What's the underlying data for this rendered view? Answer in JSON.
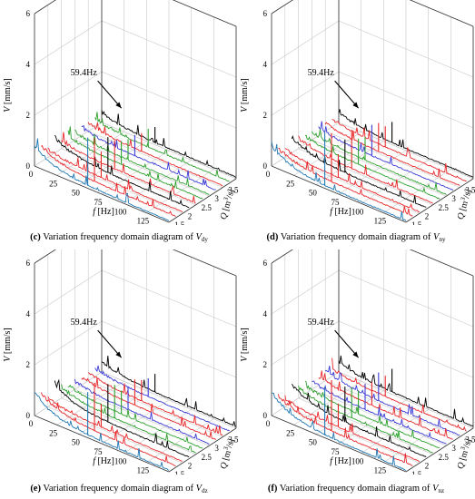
{
  "chart_data": [
    {
      "type": "3d-waterfall",
      "panel_label": "(c)",
      "caption_text": "Variation frequency domain diagram of ",
      "caption_var": "V",
      "caption_sub": "dy",
      "xlabel_main": "f",
      "xlabel_unit": " [Hz]",
      "ylabel_main": "Q",
      "ylabel_unit": " [m",
      "ylabel_sup": "3",
      "ylabel_end": "/s]",
      "zlabel_main": "V",
      "zlabel_unit": " [mm/s]",
      "x_ticks": [
        "0",
        "25",
        "50",
        "75",
        "100",
        "125",
        "150"
      ],
      "y_ticks": [
        "1.5",
        "2",
        "2.5",
        "3",
        "3.5",
        "4"
      ],
      "z_ticks": [
        "0",
        "2",
        "4",
        "6"
      ],
      "xlim": [
        0,
        150
      ],
      "ylim": [
        1.5,
        4
      ],
      "zlim": [
        0,
        6
      ],
      "annotation": "59.4Hz",
      "annotation_freq": 59.4,
      "series": [
        {
          "q": 1.5,
          "color": "#1f77b4",
          "peak": 2.0,
          "base": 0.7
        },
        {
          "q": 1.75,
          "color": "#e8272a",
          "peak": 1.8,
          "base": 0.5
        },
        {
          "q": 2.0,
          "color": "#e8272a",
          "peak": 1.1,
          "base": 0.2
        },
        {
          "q": 2.25,
          "color": "#000000",
          "peak": 1.5,
          "base": 0.5
        },
        {
          "q": 2.5,
          "color": "#e8272a",
          "peak": 1.2,
          "base": 0.2
        },
        {
          "q": 2.75,
          "color": "#2ca02c",
          "peak": 1.0,
          "base": 0.2
        },
        {
          "q": 3.0,
          "color": "#2ca02c",
          "peak": 0.9,
          "base": 0.2
        },
        {
          "q": 3.25,
          "color": "#3b3bd6",
          "peak": 0.9,
          "base": 0.2
        },
        {
          "q": 3.5,
          "color": "#e8272a",
          "peak": 0.8,
          "base": 0.2
        },
        {
          "q": 3.75,
          "color": "#2ca02c",
          "peak": 0.8,
          "base": 0.2
        },
        {
          "q": 4.0,
          "color": "#000000",
          "peak": 0.7,
          "base": 0.3
        }
      ]
    },
    {
      "type": "3d-waterfall",
      "panel_label": "(d)",
      "caption_text": "Variation frequency domain diagram of ",
      "caption_var": "V",
      "caption_sub": "ny",
      "xlabel_main": "f",
      "xlabel_unit": " [Hz]",
      "ylabel_main": "Q",
      "ylabel_unit": " [m",
      "ylabel_sup": "3",
      "ylabel_end": "/s]",
      "zlabel_main": "V",
      "zlabel_unit": " [mm/s]",
      "x_ticks": [
        "0",
        "25",
        "50",
        "75",
        "100",
        "125",
        "150"
      ],
      "y_ticks": [
        "1.5",
        "2",
        "2.5",
        "3",
        "3.5",
        "4"
      ],
      "z_ticks": [
        "0",
        "2",
        "4",
        "6"
      ],
      "xlim": [
        0,
        150
      ],
      "ylim": [
        1.5,
        4
      ],
      "zlim": [
        0,
        6
      ],
      "annotation": "59.4Hz",
      "annotation_freq": 59.4,
      "series": [
        {
          "q": 1.5,
          "color": "#1f77b4",
          "peak": 2.2,
          "base": 0.7
        },
        {
          "q": 1.75,
          "color": "#e8272a",
          "peak": 2.0,
          "base": 0.4
        },
        {
          "q": 2.0,
          "color": "#e8272a",
          "peak": 1.0,
          "base": 0.2
        },
        {
          "q": 2.25,
          "color": "#000000",
          "peak": 1.4,
          "base": 0.5
        },
        {
          "q": 2.5,
          "color": "#e8272a",
          "peak": 1.6,
          "base": 0.3
        },
        {
          "q": 2.75,
          "color": "#2ca02c",
          "peak": 1.1,
          "base": 0.2
        },
        {
          "q": 3.0,
          "color": "#2ca02c",
          "peak": 1.0,
          "base": 0.2
        },
        {
          "q": 3.25,
          "color": "#3b3bd6",
          "peak": 1.3,
          "base": 0.2
        },
        {
          "q": 3.5,
          "color": "#e8272a",
          "peak": 1.2,
          "base": 0.2
        },
        {
          "q": 3.75,
          "color": "#e8272a",
          "peak": 0.9,
          "base": 0.2
        },
        {
          "q": 4.0,
          "color": "#000000",
          "peak": 0.9,
          "base": 0.3
        }
      ]
    },
    {
      "type": "3d-waterfall",
      "panel_label": "(e)",
      "caption_text": "Variation frequency domain diagram of ",
      "caption_var": "V",
      "caption_sub": "dz",
      "xlabel_main": "f",
      "xlabel_unit": " [Hz]",
      "ylabel_main": "Q",
      "ylabel_unit": " [m",
      "ylabel_sup": "3",
      "ylabel_end": "/s]",
      "zlabel_main": "V",
      "zlabel_unit": " [mm/s]",
      "x_ticks": [
        "0",
        "25",
        "50",
        "75",
        "100",
        "125",
        "150"
      ],
      "y_ticks": [
        "1.5",
        "2",
        "2.5",
        "3",
        "3.5",
        "4"
      ],
      "z_ticks": [
        "0",
        "2",
        "4",
        "6"
      ],
      "xlim": [
        0,
        150
      ],
      "ylim": [
        1.5,
        4
      ],
      "zlim": [
        0,
        6
      ],
      "annotation": "59.4Hz",
      "annotation_freq": 59.4,
      "series": [
        {
          "q": 1.5,
          "color": "#1f77b4",
          "peak": 1.8,
          "base": 0.8
        },
        {
          "q": 1.75,
          "color": "#e8272a",
          "peak": 2.0,
          "base": 0.6
        },
        {
          "q": 2.0,
          "color": "#e8272a",
          "peak": 1.0,
          "base": 0.2
        },
        {
          "q": 2.25,
          "color": "#000000",
          "peak": 1.6,
          "base": 0.6
        },
        {
          "q": 2.5,
          "color": "#2ca02c",
          "peak": 1.4,
          "base": 0.3
        },
        {
          "q": 2.75,
          "color": "#2ca02c",
          "peak": 1.0,
          "base": 0.2
        },
        {
          "q": 3.0,
          "color": "#3b3bd6",
          "peak": 1.0,
          "base": 0.2
        },
        {
          "q": 3.25,
          "color": "#e8272a",
          "peak": 1.1,
          "base": 0.2
        },
        {
          "q": 3.5,
          "color": "#e8272a",
          "peak": 0.9,
          "base": 0.2
        },
        {
          "q": 3.75,
          "color": "#3b3bd6",
          "peak": 0.8,
          "base": 0.2
        },
        {
          "q": 4.0,
          "color": "#000000",
          "peak": 0.8,
          "base": 0.3
        }
      ]
    },
    {
      "type": "3d-waterfall",
      "panel_label": "(f)",
      "caption_text": "Variation frequency domain diagram of ",
      "caption_var": "V",
      "caption_sub": "nz",
      "xlabel_main": "f",
      "xlabel_unit": " [Hz]",
      "ylabel_main": "Q",
      "ylabel_unit": " [m",
      "ylabel_sup": "3",
      "ylabel_end": "/s]",
      "zlabel_main": "V",
      "zlabel_unit": " [mm/s]",
      "x_ticks": [
        "0",
        "25",
        "50",
        "75",
        "100",
        "125",
        "150"
      ],
      "y_ticks": [
        "1.5",
        "2",
        "2.5",
        "3",
        "3.5",
        "4"
      ],
      "z_ticks": [
        "0",
        "2",
        "4",
        "6"
      ],
      "xlim": [
        0,
        150
      ],
      "ylim": [
        1.5,
        4
      ],
      "zlim": [
        0,
        6
      ],
      "annotation": "59.4Hz",
      "annotation_freq": 59.4,
      "series": [
        {
          "q": 1.5,
          "color": "#1f77b4",
          "peak": 2.0,
          "base": 0.8
        },
        {
          "q": 1.75,
          "color": "#e8272a",
          "peak": 2.1,
          "base": 0.5
        },
        {
          "q": 2.0,
          "color": "#e8272a",
          "peak": 1.0,
          "base": 0.2
        },
        {
          "q": 2.25,
          "color": "#000000",
          "peak": 1.5,
          "base": 0.6
        },
        {
          "q": 2.5,
          "color": "#2ca02c",
          "peak": 1.3,
          "base": 0.3
        },
        {
          "q": 2.75,
          "color": "#2ca02c",
          "peak": 1.0,
          "base": 0.2
        },
        {
          "q": 3.0,
          "color": "#3b3bd6",
          "peak": 1.1,
          "base": 0.2
        },
        {
          "q": 3.25,
          "color": "#e8272a",
          "peak": 1.0,
          "base": 0.2
        },
        {
          "q": 3.5,
          "color": "#3b3bd6",
          "peak": 1.2,
          "base": 0.3
        },
        {
          "q": 3.75,
          "color": "#e8272a",
          "peak": 0.9,
          "base": 0.2
        },
        {
          "q": 4.0,
          "color": "#000000",
          "peak": 1.0,
          "base": 0.3
        }
      ]
    }
  ]
}
